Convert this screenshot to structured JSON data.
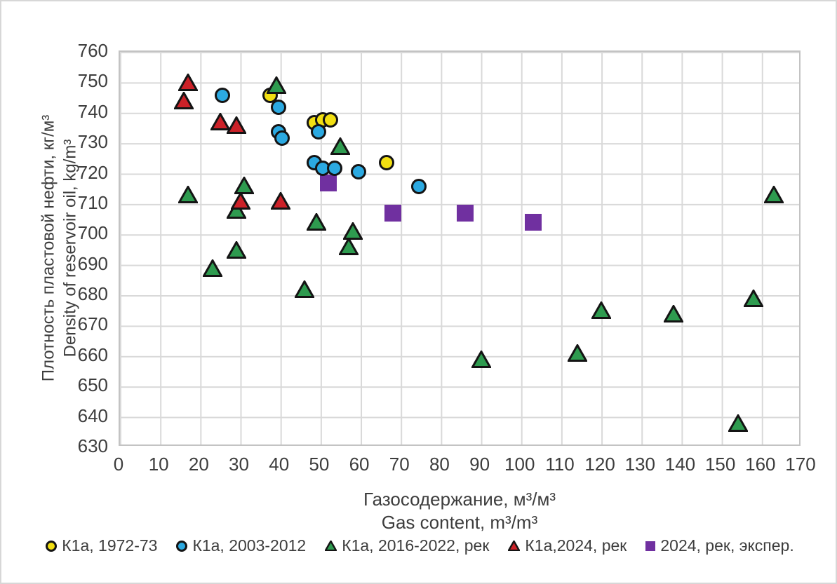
{
  "chart_data": {
    "type": "scatter",
    "title": "",
    "xlabel_ru": "Газосодержание, м³/м³",
    "xlabel_en": "Gas content, m³/m³",
    "ylabel_ru": "Плотность пластовой нефти, кг/м³",
    "ylabel_en": "Density of reservoir oil, kg/m³",
    "xlim": [
      0,
      170
    ],
    "ylim": [
      630,
      760
    ],
    "xticks": [
      0,
      10,
      20,
      30,
      40,
      50,
      60,
      70,
      80,
      90,
      100,
      110,
      120,
      130,
      140,
      150,
      160,
      170
    ],
    "yticks": [
      760,
      750,
      740,
      730,
      720,
      710,
      700,
      690,
      680,
      670,
      660,
      650,
      640,
      630
    ],
    "grid": true,
    "gridline_color": "#d9d9d9",
    "legend_position": "bottom",
    "draw_order": [
      4,
      0,
      1,
      2,
      3
    ],
    "series": [
      {
        "name": "К1а, 1972-73",
        "marker": "circle",
        "color": "#F2DF12",
        "points": [
          [
            38,
            745
          ],
          [
            49,
            736
          ],
          [
            51,
            737
          ],
          [
            53,
            737
          ],
          [
            67,
            723
          ]
        ]
      },
      {
        "name": "К1а, 2003-2012",
        "marker": "circle",
        "color": "#2BA9E1",
        "points": [
          [
            26,
            745
          ],
          [
            40,
            741
          ],
          [
            40,
            733
          ],
          [
            41,
            731
          ],
          [
            50,
            733
          ],
          [
            49,
            723
          ],
          [
            51,
            721
          ],
          [
            54,
            721
          ],
          [
            60,
            720
          ],
          [
            75,
            715
          ]
        ]
      },
      {
        "name": "К1а, 2016-2022, рек",
        "marker": "triangle",
        "color": "#2E9B4F",
        "points": [
          [
            17,
            713
          ],
          [
            23,
            689
          ],
          [
            29,
            708
          ],
          [
            29,
            695
          ],
          [
            31,
            716
          ],
          [
            39,
            749
          ],
          [
            46,
            682
          ],
          [
            49,
            704
          ],
          [
            55,
            729
          ],
          [
            57,
            696
          ],
          [
            58,
            701
          ],
          [
            90,
            659
          ],
          [
            114,
            661
          ],
          [
            120,
            675
          ],
          [
            138,
            674
          ],
          [
            154,
            638
          ],
          [
            158,
            679
          ],
          [
            163,
            713
          ]
        ]
      },
      {
        "name": "К1а,2024, рек",
        "marker": "triangle",
        "color": "#CC2128",
        "points": [
          [
            16,
            744
          ],
          [
            17,
            750
          ],
          [
            25,
            737
          ],
          [
            29,
            736
          ],
          [
            30,
            711
          ],
          [
            40,
            711
          ]
        ]
      },
      {
        "name": "2024, рек, экспер.",
        "marker": "square",
        "color": "#7030A0",
        "points": [
          [
            52,
            717
          ],
          [
            68,
            707
          ],
          [
            86,
            707
          ],
          [
            103,
            704
          ]
        ]
      }
    ]
  }
}
